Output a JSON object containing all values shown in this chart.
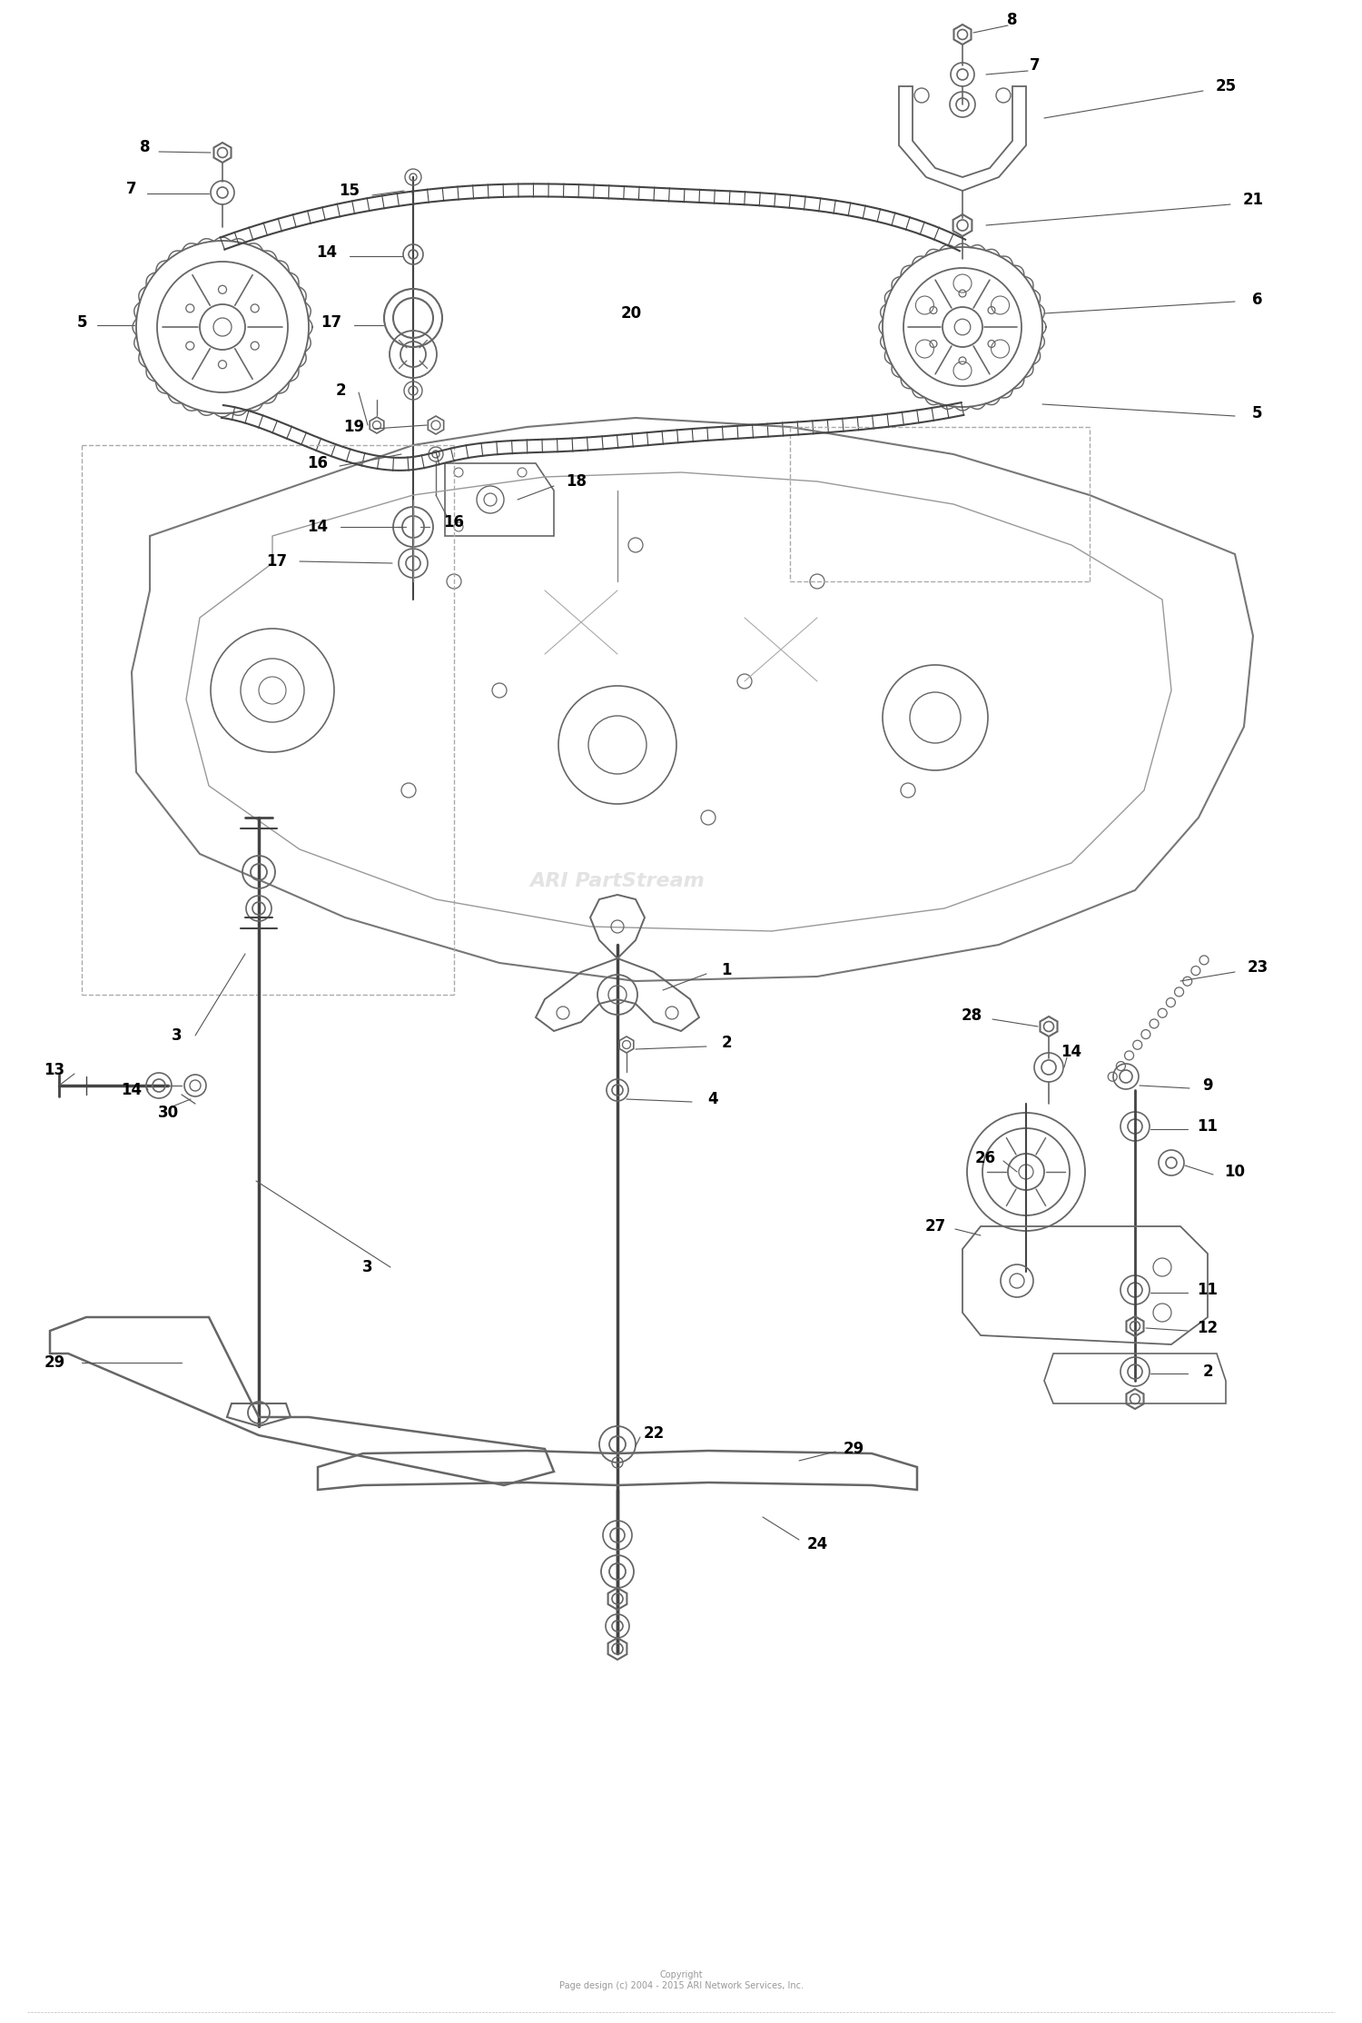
{
  "background_color": "#ffffff",
  "line_color": "#666666",
  "dark_line_color": "#444444",
  "text_color": "#000000",
  "watermark": "ARI PartStream",
  "watermark_color": "#c8c8c8",
  "copyright_text": "Copyright\nPage design (c) 2004 - 2015 ARI Network Services, Inc.",
  "fig_width": 15.0,
  "fig_height": 22.27,
  "dpi": 100
}
